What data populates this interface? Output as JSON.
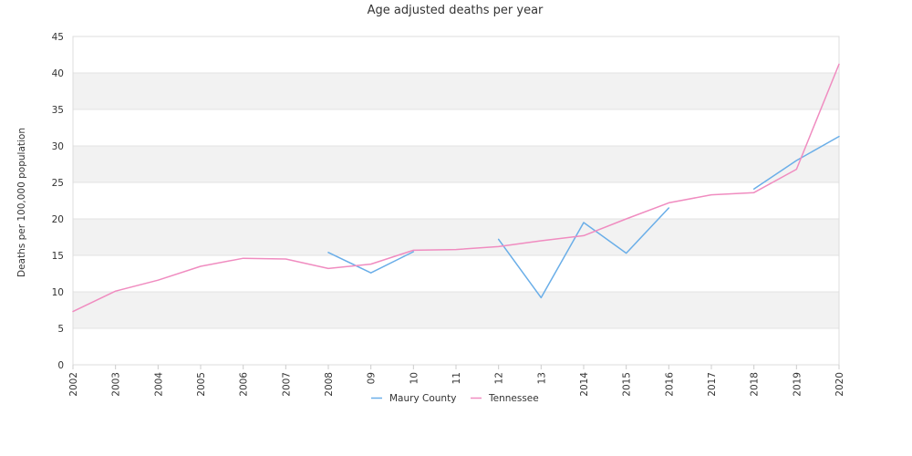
{
  "chart_data": {
    "type": "line",
    "title": "Age adjusted deaths per year",
    "xlabel": "",
    "ylabel": "Deaths per 100,000 population",
    "categories": [
      "2002",
      "2003",
      "2004",
      "2005",
      "2006",
      "2007",
      "2008",
      "09",
      "10",
      "11",
      "12",
      "13",
      "2014",
      "2015",
      "2016",
      "2017",
      "2018",
      "2019",
      "2020"
    ],
    "ylim": [
      0,
      45
    ],
    "yticks": [
      0,
      5,
      10,
      15,
      20,
      25,
      30,
      35,
      40,
      45
    ],
    "grid": "alternating horizontal bands",
    "legend_position": "bottom-center",
    "series": [
      {
        "name": "Maury County",
        "color": "#6aaee8",
        "values": [
          null,
          null,
          null,
          null,
          null,
          null,
          15.4,
          12.6,
          15.5,
          null,
          17.2,
          9.2,
          19.5,
          15.3,
          21.5,
          null,
          24.1,
          28.0,
          31.3
        ]
      },
      {
        "name": "Tennessee",
        "color": "#f08cc0",
        "values": [
          7.3,
          10.1,
          11.6,
          13.5,
          14.6,
          14.5,
          13.2,
          13.8,
          15.7,
          15.8,
          16.2,
          17.0,
          17.7,
          20.0,
          22.2,
          23.3,
          23.6,
          26.8,
          41.2
        ]
      }
    ]
  }
}
